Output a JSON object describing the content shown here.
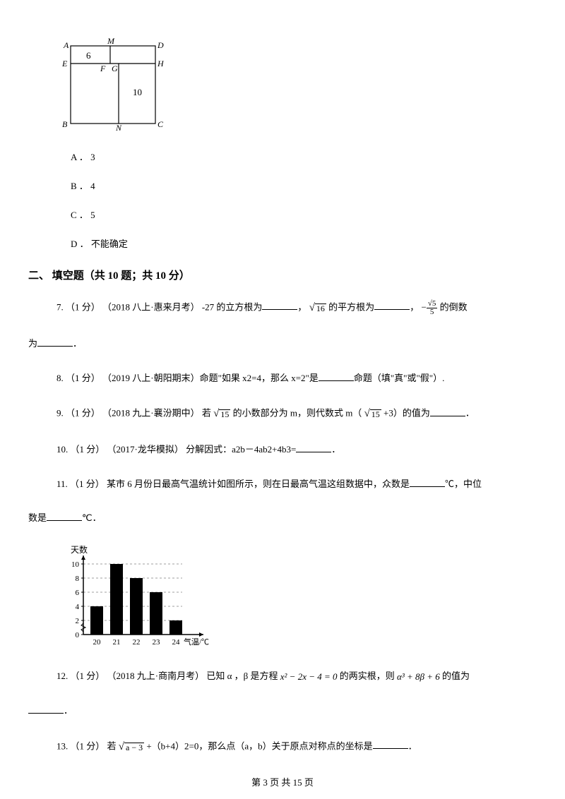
{
  "geoFigure": {
    "labels": {
      "A": "A",
      "M": "M",
      "D": "D",
      "E": "E",
      "F": "F",
      "G": "G",
      "H": "H",
      "B": "B",
      "N": "N",
      "C": "C"
    },
    "numbers": {
      "six": "6",
      "ten": "10"
    },
    "stroke": "#000000",
    "strokeWidth": 1.2
  },
  "options": {
    "A": "A ． 3",
    "B": "B ． 4",
    "C": "C ． 5",
    "D": "D ． 不能确定"
  },
  "sectionHeading": "二、 填空题（共 10 题；共 10 分）",
  "q7": {
    "prefix": "7.  （1 分） （2018 八上·惠来月考） -27  的立方根为",
    "mid1": "，",
    "sqrt16": "16",
    "mid2": " 的平方根为",
    "mid3": "，",
    "neg": "−",
    "fracNum": "√5",
    "fracDen": "5",
    "mid4": " 的倒数",
    "line2": "为",
    "end": "．"
  },
  "q8": {
    "prefix": "8.  （1 分） （2019 八上·朝阳期末）命题\"如果 x2=4，那么 x=2\"是",
    "suffix": "命题（填\"真\"或\"假\"）."
  },
  "q9": {
    "prefix": "9.  （1 分） （2018 九上·襄汾期中） 若 ",
    "sqrt15a": "15",
    "mid1": " 的小数部分为 m，则代数式 m（",
    "sqrt15b": "15",
    "mid2": " +3）的值为",
    "end": "．"
  },
  "q10": {
    "prefix": "10.  （1 分） （2017·龙华模拟） 分解因式：a2b－4ab2+4b3=",
    "end": "．"
  },
  "q11": {
    "prefix": "11.  （1 分）  某市 6 月份日最高气温统计如图所示，则在日最高气温这组数据中，众数是",
    "mid": "℃，中位",
    "line2": "数是",
    "end": "℃．"
  },
  "chart": {
    "yLabel": "天数",
    "xLabel": "气温/℃",
    "xTicks": [
      "20",
      "21",
      "22",
      "23",
      "24"
    ],
    "yTicks": [
      "0",
      "2",
      "4",
      "6",
      "8",
      "10"
    ],
    "values": [
      4,
      10,
      8,
      6,
      2
    ],
    "barColor": "#000000",
    "axisColor": "#000000",
    "gridColor": "#808080",
    "background": "#ffffff",
    "barWidth": 18,
    "barGap": 10
  },
  "q12": {
    "prefix": "12.  （1 分） （2018 九上·商南月考） 已知 α ，β 是方程 ",
    "formula1": "x² − 2x − 4 = 0",
    "mid": " 的两实根，则 ",
    "formula2": "α³ + 8β + 6",
    "suffix": " 的值为",
    "line2": "",
    "end": "．"
  },
  "q13": {
    "prefix": "13.  （1 分）  若 ",
    "sqrtExpr": "a − 3",
    "mid": " +（b+4）2=0，那么点（a，b）关于原点对称点的坐标是",
    "end": "．"
  },
  "footer": "第 3 页 共 15 页"
}
